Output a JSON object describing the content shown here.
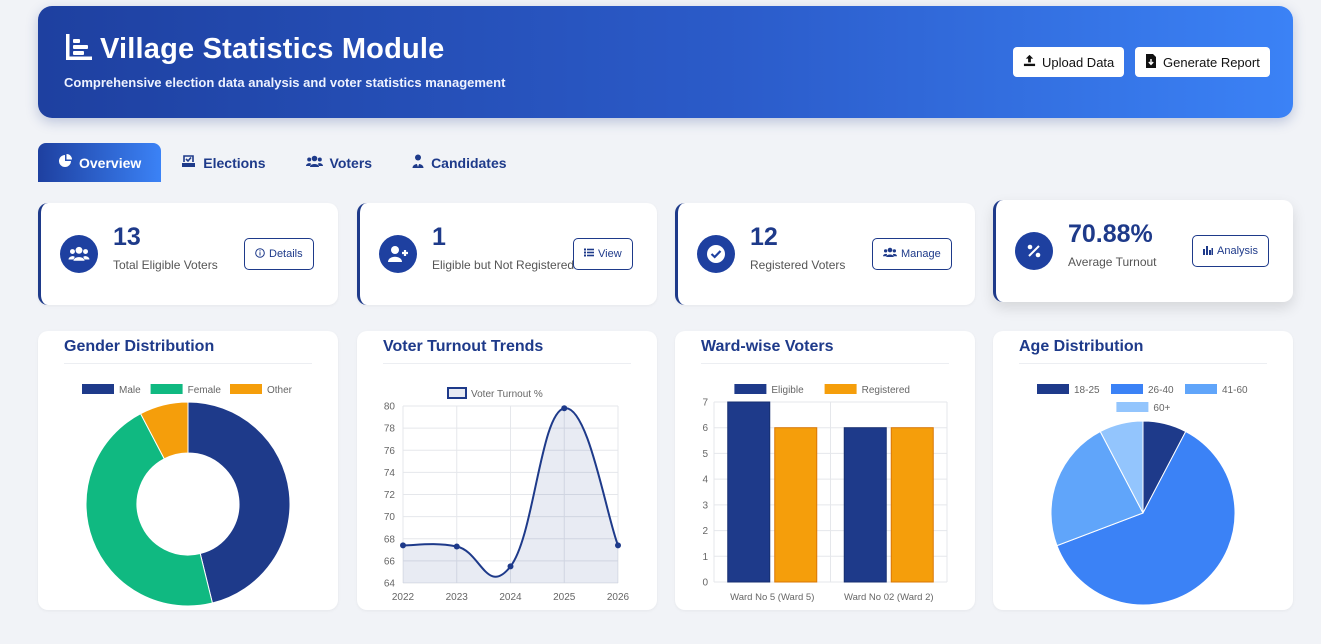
{
  "header": {
    "title": "Village Statistics Module",
    "subtitle": "Comprehensive election data analysis and voter statistics management",
    "upload_label": "Upload Data",
    "report_label": "Generate Report"
  },
  "tabs": [
    {
      "label": "Overview",
      "icon": "pie-chart-icon",
      "active": true
    },
    {
      "label": "Elections",
      "icon": "vote-box-icon",
      "active": false
    },
    {
      "label": "Voters",
      "icon": "users-icon",
      "active": false
    },
    {
      "label": "Candidates",
      "icon": "user-tie-icon",
      "active": false
    }
  ],
  "stats": [
    {
      "value": "13",
      "label": "Total Eligible Voters",
      "button": "Details",
      "icon": "users-icon",
      "button_icon": "info-icon"
    },
    {
      "value": "1",
      "label": "Eligible but Not Registered",
      "button": "View",
      "icon": "user-plus-icon",
      "button_icon": "list-icon"
    },
    {
      "value": "12",
      "label": "Registered Voters",
      "button": "Manage",
      "icon": "check-circle-icon",
      "button_icon": "users-cog-icon"
    },
    {
      "value": "70.88%",
      "label": "Average Turnout",
      "button": "Analysis",
      "icon": "percent-icon",
      "button_icon": "bar-chart-icon"
    }
  ],
  "colors": {
    "navy": "#1e3a8a",
    "green": "#10b981",
    "orange": "#f59e0b",
    "blue": "#3b82f6",
    "lightblue": "#60a5fa",
    "paleblue": "#93c5fd"
  },
  "chart_data": [
    {
      "type": "doughnut",
      "title": "Gender Distribution",
      "categories": [
        "Male",
        "Female",
        "Other"
      ],
      "values": [
        6,
        6,
        1
      ],
      "colors": [
        "#1e3a8a",
        "#10b981",
        "#f59e0b"
      ],
      "legend": "top"
    },
    {
      "type": "line",
      "title": "Voter Turnout Trends",
      "series": [
        {
          "name": "Voter Turnout %",
          "values": [
            67.4,
            67.3,
            65.5,
            79.8,
            67.4
          ]
        }
      ],
      "x": [
        "2022",
        "2023",
        "2024",
        "2025",
        "2026"
      ],
      "yticks": [
        "64",
        "66",
        "68",
        "70",
        "72",
        "74",
        "76",
        "78",
        "80"
      ],
      "ylim": [
        64,
        80
      ],
      "grid": true,
      "legend": "top"
    },
    {
      "type": "bar",
      "title": "Ward-wise Voters",
      "categories": [
        "Ward No 5 (Ward 5)",
        "Ward No 02 (Ward 2)"
      ],
      "series": [
        {
          "name": "Eligible",
          "values": [
            7,
            6
          ]
        },
        {
          "name": "Registered",
          "values": [
            6,
            6
          ]
        }
      ],
      "yticks": [
        "0",
        "1",
        "2",
        "3",
        "4",
        "5",
        "6",
        "7"
      ],
      "ylim": [
        0,
        7
      ],
      "grid": true,
      "legend": "top"
    },
    {
      "type": "pie",
      "title": "Age Distribution",
      "categories": [
        "18-25",
        "26-40",
        "41-60",
        "60+"
      ],
      "values": [
        1,
        8,
        3,
        1
      ],
      "colors": [
        "#1e3a8a",
        "#3b82f6",
        "#60a5fa",
        "#93c5fd"
      ],
      "legend": "top"
    }
  ]
}
